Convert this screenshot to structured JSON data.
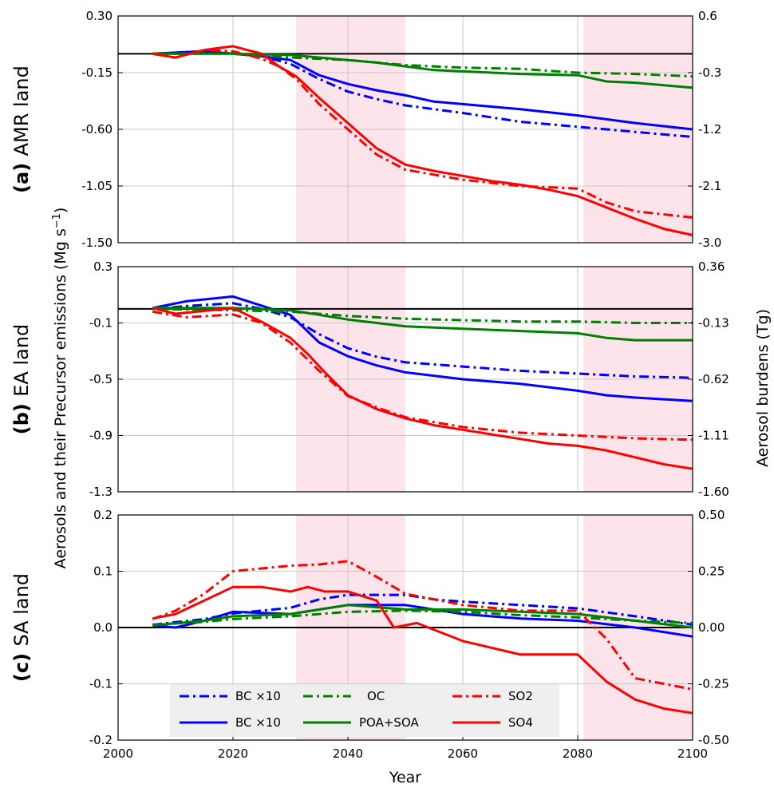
{
  "chart_data": {
    "type": "line",
    "xlabel": "Year",
    "ylabel_left": "Aerosols and their Precursor emissions (Mg s",
    "ylabel_left_exp": "−1",
    "ylabel_left_close": ")",
    "ylabel_right": "Aerosol burdens (Tg)",
    "xlim": [
      2000,
      2100
    ],
    "xticks": [
      "2000",
      "2020",
      "2040",
      "2060",
      "2080",
      "2100"
    ],
    "shaded_periods": [
      [
        2031,
        2050
      ],
      [
        2081,
        2100
      ]
    ],
    "colors": {
      "bc": "#0000ff",
      "oc": "#008000",
      "so": "#ff0000",
      "shade": "#fde4ea"
    },
    "legend": {
      "entries": [
        {
          "label": "BC ×10",
          "color": "#0000ff",
          "style": "dashdot"
        },
        {
          "label": "",
          "color": "#008000",
          "style": "dashdot"
        },
        {
          "label": "OC",
          "color": "",
          "style": "none"
        },
        {
          "label": "SO2",
          "color": "#ff0000",
          "style": "dashdot"
        },
        {
          "label": "BC ×10",
          "color": "#0000ff",
          "style": "solid"
        },
        {
          "label": "POA+SOA",
          "color": "#008000",
          "style": "solid"
        },
        {
          "label": "SO4",
          "color": "#ff0000",
          "style": "solid"
        }
      ]
    },
    "panels": [
      {
        "label": "(a)",
        "region": "AMR land",
        "ylim_left": [
          -1.5,
          0.3
        ],
        "yticks_left": [
          "0.30",
          "-0.15",
          "-0.60",
          "-1.05",
          "-1.50"
        ],
        "ylim_right": [
          -3.0,
          0.6
        ],
        "yticks_right": [
          "0.6",
          "-0.3",
          "-1.2",
          "-2.1",
          "-3.0"
        ],
        "series": [
          {
            "name": "BC ×10",
            "axis": "left",
            "color": "#0000ff",
            "style": "dashdot",
            "x": [
              2006,
              2015,
              2020,
              2025,
              2030,
              2035,
              2040,
              2045,
              2050,
              2060,
              2070,
              2080,
              2090,
              2100
            ],
            "y": [
              0.0,
              0.02,
              0.0,
              -0.02,
              -0.08,
              -0.2,
              -0.3,
              -0.36,
              -0.41,
              -0.47,
              -0.54,
              -0.58,
              -0.62,
              -0.66
            ]
          },
          {
            "name": "BC ×10",
            "axis": "right",
            "color": "#0000ff",
            "style": "solid",
            "x": [
              2006,
              2015,
              2020,
              2025,
              2030,
              2035,
              2040,
              2045,
              2050,
              2055,
              2060,
              2070,
              2080,
              2090,
              2100
            ],
            "y": [
              0.0,
              0.04,
              0.0,
              -0.04,
              -0.1,
              -0.34,
              -0.48,
              -0.58,
              -0.66,
              -0.76,
              -0.8,
              -0.88,
              -0.98,
              -1.1,
              -1.2
            ]
          },
          {
            "name": "OC",
            "axis": "left",
            "color": "#008000",
            "style": "dashdot",
            "x": [
              2006,
              2020,
              2030,
              2040,
              2050,
              2060,
              2070,
              2080,
              2090,
              2100
            ],
            "y": [
              0.0,
              0.0,
              -0.03,
              -0.05,
              -0.09,
              -0.11,
              -0.12,
              -0.15,
              -0.16,
              -0.18
            ]
          },
          {
            "name": "POA+SOA",
            "axis": "right",
            "color": "#008000",
            "style": "solid",
            "x": [
              2006,
              2020,
              2030,
              2040,
              2045,
              2050,
              2055,
              2060,
              2070,
              2080,
              2085,
              2090,
              2100
            ],
            "y": [
              0.0,
              0.0,
              -0.02,
              -0.1,
              -0.14,
              -0.2,
              -0.26,
              -0.28,
              -0.32,
              -0.34,
              -0.44,
              -0.46,
              -0.54
            ]
          },
          {
            "name": "SO2",
            "axis": "left",
            "color": "#ff0000",
            "style": "dashdot",
            "x": [
              2006,
              2010,
              2015,
              2020,
              2025,
              2028,
              2031,
              2035,
              2040,
              2045,
              2050,
              2055,
              2060,
              2070,
              2080,
              2085,
              2090,
              2100
            ],
            "y": [
              0.0,
              -0.03,
              0.03,
              0.02,
              -0.04,
              -0.1,
              -0.2,
              -0.4,
              -0.6,
              -0.8,
              -0.92,
              -0.96,
              -1.0,
              -1.05,
              -1.07,
              -1.18,
              -1.25,
              -1.3
            ]
          },
          {
            "name": "SO4",
            "axis": "right",
            "color": "#ff0000",
            "style": "solid",
            "x": [
              2006,
              2010,
              2015,
              2020,
              2025,
              2028,
              2031,
              2035,
              2040,
              2045,
              2050,
              2055,
              2060,
              2065,
              2070,
              2075,
              2080,
              2085,
              2090,
              2095,
              2100
            ],
            "y": [
              0.0,
              -0.06,
              0.06,
              0.12,
              0.0,
              -0.2,
              -0.36,
              -0.7,
              -1.1,
              -1.5,
              -1.76,
              -1.86,
              -1.94,
              -2.02,
              -2.08,
              -2.16,
              -2.26,
              -2.44,
              -2.62,
              -2.78,
              -2.88
            ]
          }
        ]
      },
      {
        "label": "(b)",
        "region": "EA land",
        "ylim_left": [
          -1.3,
          0.3
        ],
        "yticks_left": [
          "0.3",
          "-0.1",
          "-0.5",
          "-0.9",
          "-1.3"
        ],
        "ylim_right": [
          -1.6,
          0.36
        ],
        "yticks_right": [
          "0.36",
          "-0.13",
          "-0.62",
          "-1.11",
          "-1.60"
        ],
        "series": [
          {
            "name": "BC ×10",
            "axis": "left",
            "color": "#0000ff",
            "style": "dashdot",
            "x": [
              2006,
              2012,
              2020,
              2025,
              2030,
              2035,
              2040,
              2045,
              2050,
              2060,
              2070,
              2080,
              2090,
              2100
            ],
            "y": [
              0.0,
              0.02,
              0.04,
              0.0,
              -0.06,
              -0.18,
              -0.28,
              -0.34,
              -0.38,
              -0.41,
              -0.44,
              -0.46,
              -0.48,
              -0.49
            ]
          },
          {
            "name": "BC ×10",
            "axis": "right",
            "color": "#0000ff",
            "style": "solid",
            "x": [
              2006,
              2012,
              2020,
              2025,
              2030,
              2035,
              2040,
              2045,
              2050,
              2060,
              2070,
              2080,
              2085,
              2090,
              2100
            ],
            "y": [
              0.0,
              0.06,
              0.1,
              0.02,
              -0.06,
              -0.3,
              -0.42,
              -0.5,
              -0.56,
              -0.62,
              -0.66,
              -0.72,
              -0.76,
              -0.78,
              -0.81
            ]
          },
          {
            "name": "OC",
            "axis": "left",
            "color": "#008000",
            "style": "dashdot",
            "x": [
              2006,
              2020,
              2030,
              2040,
              2050,
              2060,
              2070,
              2080,
              2090,
              2100
            ],
            "y": [
              0.0,
              -0.01,
              -0.02,
              -0.05,
              -0.07,
              -0.08,
              -0.09,
              -0.09,
              -0.1,
              -0.1
            ]
          },
          {
            "name": "POA+SOA",
            "axis": "right",
            "color": "#008000",
            "style": "solid",
            "x": [
              2006,
              2020,
              2030,
              2040,
              2050,
              2060,
              2070,
              2080,
              2085,
              2090,
              2100
            ],
            "y": [
              0.0,
              0.0,
              -0.02,
              -0.1,
              -0.16,
              -0.18,
              -0.2,
              -0.22,
              -0.26,
              -0.28,
              -0.28
            ]
          },
          {
            "name": "SO2",
            "axis": "left",
            "color": "#ff0000",
            "style": "dashdot",
            "x": [
              2006,
              2012,
              2020,
              2025,
              2030,
              2035,
              2040,
              2045,
              2050,
              2060,
              2070,
              2080,
              2090,
              2100
            ],
            "y": [
              -0.02,
              -0.06,
              -0.04,
              -0.1,
              -0.24,
              -0.44,
              -0.62,
              -0.7,
              -0.77,
              -0.84,
              -0.88,
              -0.9,
              -0.92,
              -0.93
            ]
          },
          {
            "name": "SO4",
            "axis": "right",
            "color": "#ff0000",
            "style": "solid",
            "x": [
              2006,
              2010,
              2020,
              2025,
              2030,
              2033,
              2036,
              2040,
              2045,
              2050,
              2055,
              2060,
              2065,
              2070,
              2075,
              2080,
              2085,
              2090,
              2095,
              2100
            ],
            "y": [
              0.0,
              -0.05,
              0.0,
              -0.12,
              -0.26,
              -0.4,
              -0.56,
              -0.76,
              -0.88,
              -0.96,
              -1.02,
              -1.06,
              -1.1,
              -1.14,
              -1.18,
              -1.2,
              -1.24,
              -1.3,
              -1.36,
              -1.4
            ]
          }
        ]
      },
      {
        "label": "(c)",
        "region": "SA land",
        "ylim_left": [
          -0.2,
          0.2
        ],
        "yticks_left": [
          "0.2",
          "0.1",
          "0.0",
          "-0.1",
          "-0.2"
        ],
        "ylim_right": [
          -0.5,
          0.5
        ],
        "yticks_right": [
          "0.50",
          "0.25",
          "0.00",
          "-0.25",
          "-0.50"
        ],
        "series": [
          {
            "name": "BC ×10",
            "axis": "left",
            "color": "#0000ff",
            "style": "dashdot",
            "x": [
              2006,
              2015,
              2020,
              2030,
              2035,
              2040,
              2050,
              2055,
              2060,
              2070,
              2080,
              2090,
              2100
            ],
            "y": [
              0.005,
              0.015,
              0.025,
              0.035,
              0.05,
              0.058,
              0.058,
              0.05,
              0.046,
              0.04,
              0.034,
              0.02,
              0.005
            ]
          },
          {
            "name": "BC ×10",
            "axis": "right",
            "color": "#0000ff",
            "style": "solid",
            "x": [
              2006,
              2010,
              2015,
              2020,
              2030,
              2040,
              2050,
              2060,
              2070,
              2080,
              2090,
              2100
            ],
            "y": [
              0.01,
              0.0,
              0.03,
              0.07,
              0.06,
              0.1,
              0.1,
              0.06,
              0.04,
              0.03,
              0.0,
              -0.04
            ]
          },
          {
            "name": "OC",
            "axis": "left",
            "color": "#008000",
            "style": "dashdot",
            "x": [
              2006,
              2015,
              2020,
              2030,
              2040,
              2050,
              2060,
              2070,
              2080,
              2090,
              2100
            ],
            "y": [
              0.005,
              0.01,
              0.015,
              0.02,
              0.028,
              0.03,
              0.028,
              0.022,
              0.018,
              0.012,
              0.008
            ]
          },
          {
            "name": "POA+SOA",
            "axis": "right",
            "color": "#008000",
            "style": "solid",
            "x": [
              2006,
              2015,
              2020,
              2030,
              2040,
              2050,
              2060,
              2070,
              2080,
              2090,
              2100
            ],
            "y": [
              0.01,
              0.03,
              0.05,
              0.06,
              0.1,
              0.08,
              0.08,
              0.07,
              0.06,
              0.03,
              0.0
            ]
          },
          {
            "name": "SO2",
            "axis": "left",
            "color": "#ff0000",
            "style": "dashdot",
            "x": [
              2006,
              2010,
              2015,
              2020,
              2025,
              2030,
              2035,
              2040,
              2045,
              2050,
              2060,
              2070,
              2080,
              2085,
              2090,
              2095,
              2100
            ],
            "y": [
              0.015,
              0.03,
              0.06,
              0.1,
              0.105,
              0.11,
              0.112,
              0.118,
              0.09,
              0.06,
              0.04,
              0.03,
              0.03,
              -0.02,
              -0.09,
              -0.1,
              -0.11
            ]
          },
          {
            "name": "SO4",
            "axis": "right",
            "color": "#ff0000",
            "style": "solid",
            "x": [
              2006,
              2010,
              2015,
              2020,
              2025,
              2030,
              2033,
              2036,
              2040,
              2045,
              2048,
              2052,
              2056,
              2060,
              2070,
              2080,
              2085,
              2090,
              2095,
              2100
            ],
            "y": [
              0.04,
              0.06,
              0.12,
              0.18,
              0.18,
              0.16,
              0.18,
              0.16,
              0.16,
              0.12,
              0.0,
              0.02,
              -0.02,
              -0.06,
              -0.12,
              -0.12,
              -0.24,
              -0.32,
              -0.36,
              -0.38
            ]
          }
        ]
      }
    ]
  }
}
